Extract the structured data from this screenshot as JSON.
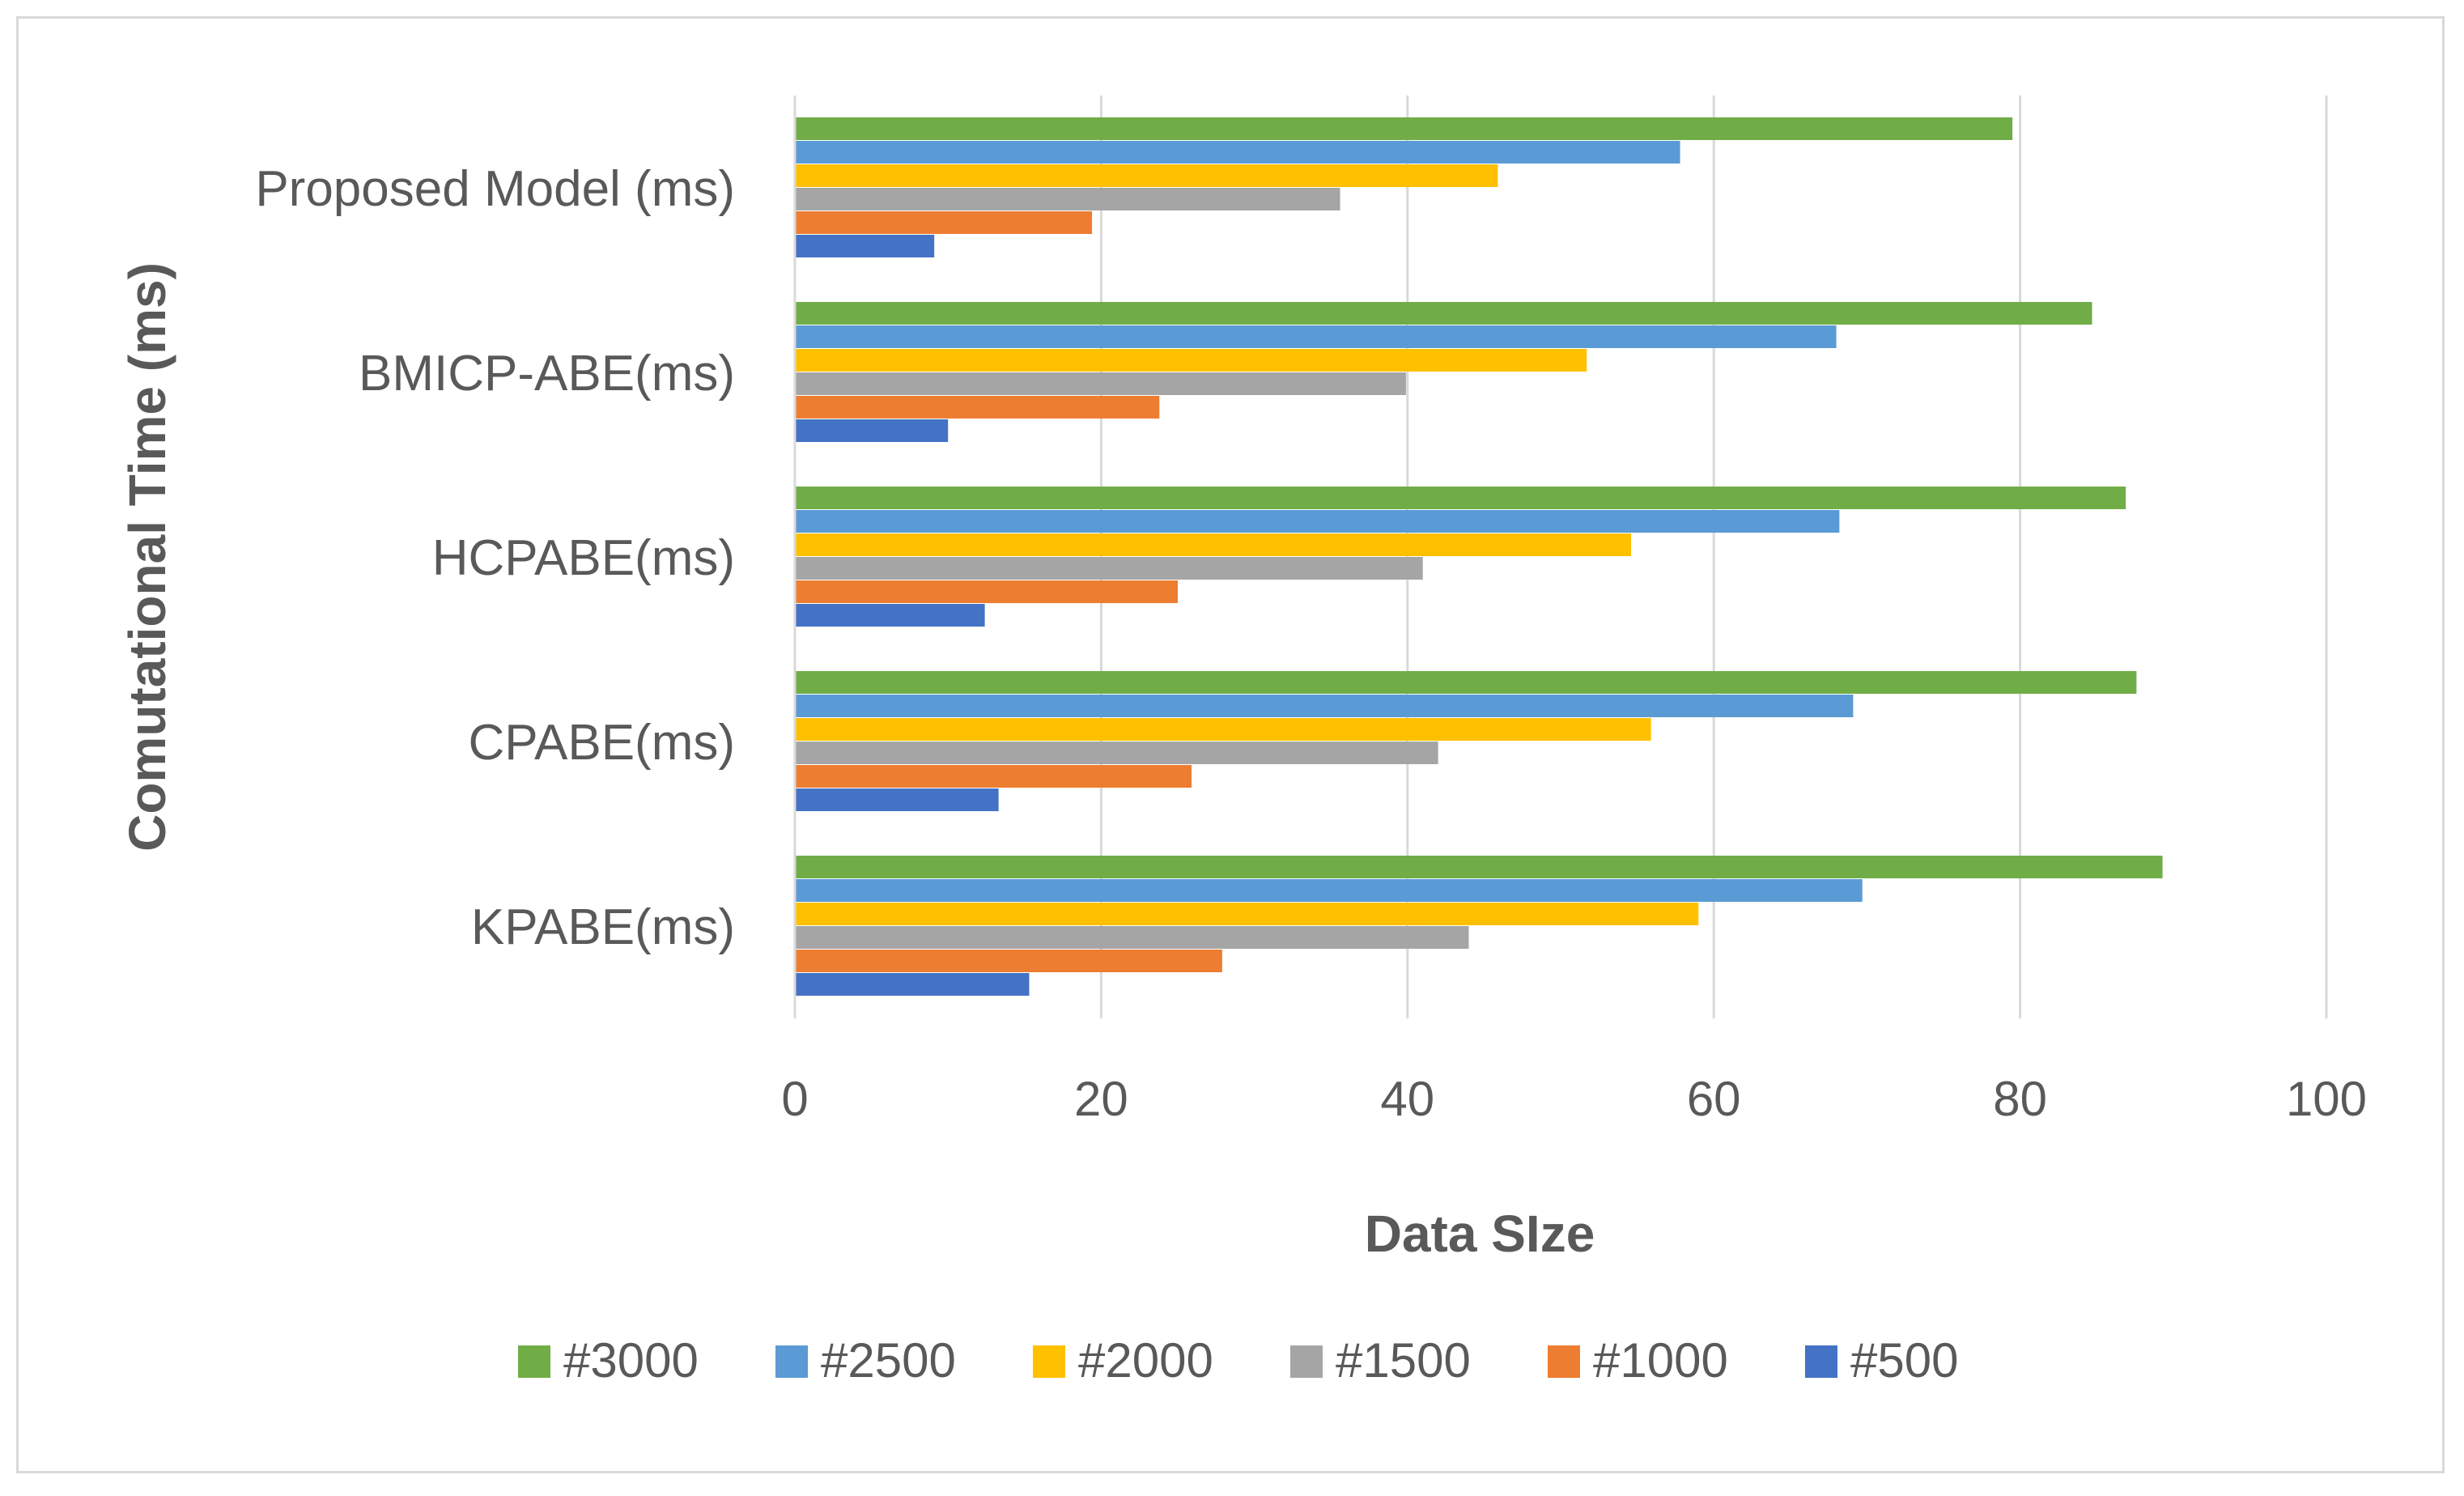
{
  "chart_data": {
    "type": "bar",
    "orientation": "horizontal",
    "title": "",
    "xlabel": "Data SIze",
    "ylabel": "Comutational Time (ms)",
    "xlim": [
      0,
      100
    ],
    "xticks": [
      0,
      20,
      40,
      60,
      80,
      100
    ],
    "grid": true,
    "legend_position": "bottom",
    "categories": [
      "Proposed Model (ms)",
      "BMICP-ABE(ms)",
      "HCPABE(ms)",
      "CPABE(ms)",
      "KPABE(ms)"
    ],
    "series": [
      {
        "name": "#3000",
        "color": "#70ad47",
        "values": [
          79.5,
          84.7,
          86.9,
          87.6,
          89.3
        ]
      },
      {
        "name": "#2500",
        "color": "#5b9bd5",
        "values": [
          57.8,
          68.0,
          68.2,
          69.1,
          69.7
        ]
      },
      {
        "name": "#2000",
        "color": "#ffc000",
        "values": [
          45.9,
          51.7,
          54.6,
          55.9,
          59.0
        ]
      },
      {
        "name": "#1500",
        "color": "#a5a5a5",
        "values": [
          35.6,
          39.9,
          41.0,
          42.0,
          44.0
        ]
      },
      {
        "name": "#1000",
        "color": "#ed7d31",
        "values": [
          19.4,
          23.8,
          25.0,
          25.9,
          27.9
        ]
      },
      {
        "name": "#500",
        "color": "#4472c4",
        "values": [
          9.1,
          10.0,
          12.4,
          13.3,
          15.3
        ]
      }
    ]
  }
}
